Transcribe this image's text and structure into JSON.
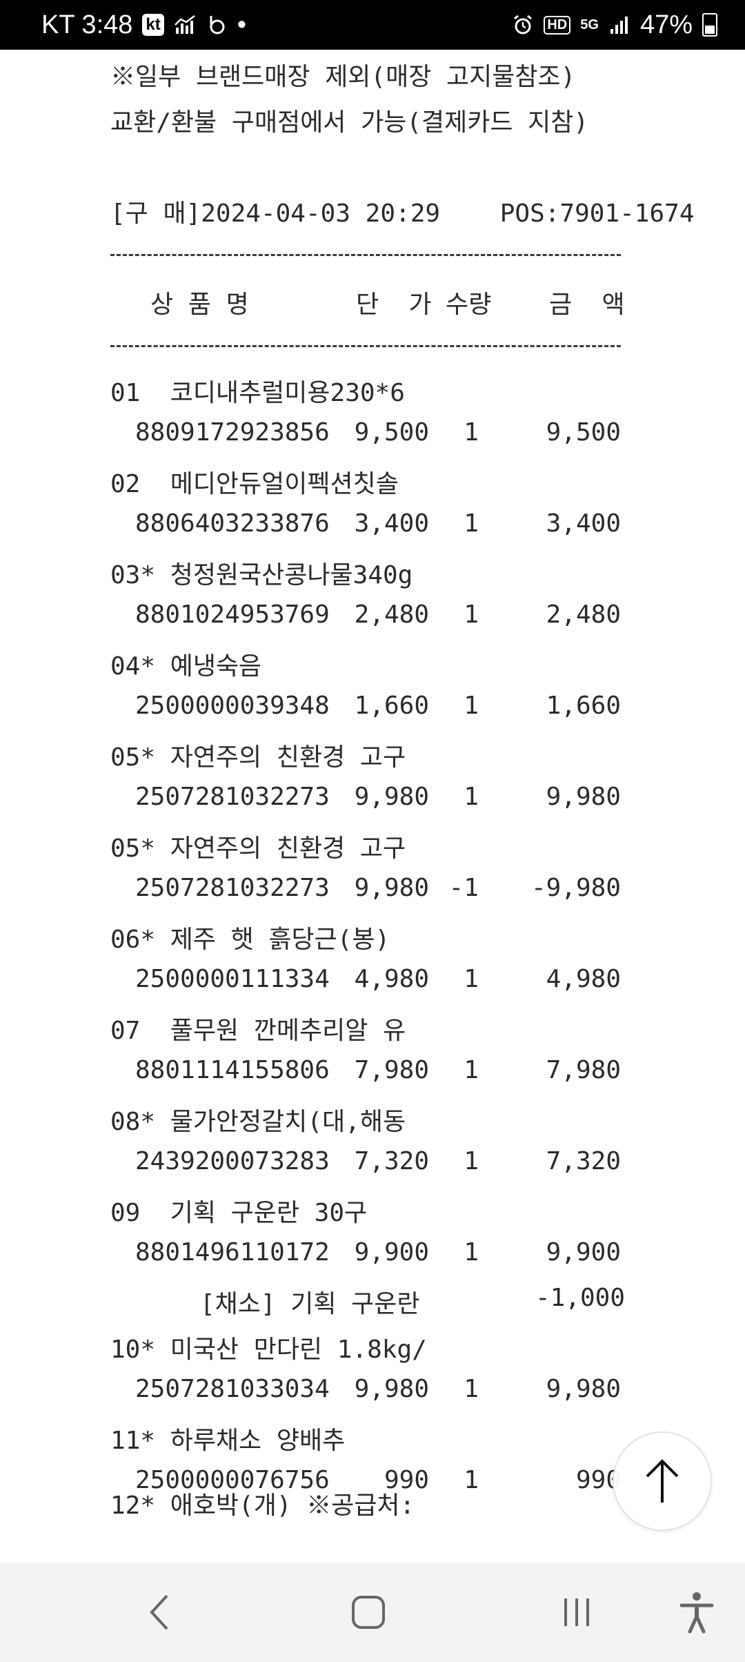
{
  "status_bar": {
    "carrier_time": "KT 3:48",
    "kt_badge": "kt",
    "dot": "•",
    "hd": "HD",
    "five_g": "5G",
    "battery": "47%"
  },
  "receipt": {
    "notice_1": "※일부 브랜드매장 제외(매장 고지물참조)",
    "notice_2": "교환/환불 구매점에서 가능(결제카드 지참)",
    "purchase_line": "[구 매]2024-04-03 20:29    POS:7901-1674",
    "headers": {
      "name": "상 품 명",
      "price": "단  가",
      "qty": "수량",
      "amount": "금  액"
    },
    "items": [
      {
        "name": "01  코디내추럴미용230*6",
        "code": "8809172923856",
        "price": "9,500",
        "qty": "1",
        "amount": "9,500"
      },
      {
        "name": "02  메디안듀얼이펙션칫솔",
        "code": "8806403233876",
        "price": "3,400",
        "qty": "1",
        "amount": "3,400"
      },
      {
        "name": "03* 청정원국산콩나물340g",
        "code": "8801024953769",
        "price": "2,480",
        "qty": "1",
        "amount": "2,480"
      },
      {
        "name": "04* 예냉숙음",
        "code": "2500000039348",
        "price": "1,660",
        "qty": "1",
        "amount": "1,660"
      },
      {
        "name": "05* 자연주의 친환경 고구",
        "code": "2507281032273",
        "price": "9,980",
        "qty": "1",
        "amount": "9,980"
      },
      {
        "name": "05* 자연주의 친환경 고구",
        "code": "2507281032273",
        "price": "9,980",
        "qty": "-1",
        "amount": "-9,980"
      },
      {
        "name": "06* 제주 햇 흙당근(봉)",
        "code": "2500000111334",
        "price": "4,980",
        "qty": "1",
        "amount": "4,980"
      },
      {
        "name": "07  풀무원 깐메추리알 유",
        "code": "8801114155806",
        "price": "7,980",
        "qty": "1",
        "amount": "7,980"
      },
      {
        "name": "08* 물가안정갈치(대,해동",
        "code": "2439200073283",
        "price": "7,320",
        "qty": "1",
        "amount": "7,320"
      },
      {
        "name": "09  기획 구운란 30구",
        "code": "8801496110172",
        "price": "9,900",
        "qty": "1",
        "amount": "9,900"
      },
      {
        "name": "10* 미국산 만다린 1.8kg/",
        "code": "2507281033034",
        "price": "9,980",
        "qty": "1",
        "amount": "9,980"
      },
      {
        "name": "11* 하루채소 양배추",
        "code": "2500000076756",
        "price": "990",
        "qty": "1",
        "amount": "990"
      }
    ],
    "discount": {
      "label": "[채소] 기획 구운란",
      "amount": "-1,000"
    },
    "last_item_name": "12* 애호박(개) ※공급처:"
  }
}
